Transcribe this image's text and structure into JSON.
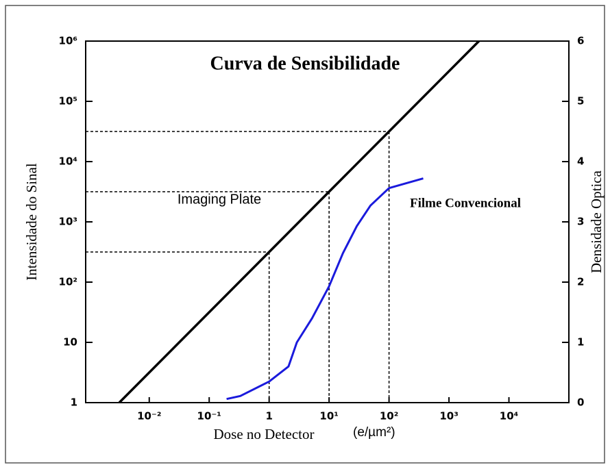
{
  "chart_data": {
    "type": "line",
    "title": "Curva de Sensibilidade",
    "xlabel": "Dose no Detector",
    "xunit": "(e/µm²)",
    "ylabel": "Intensidade do Sinal",
    "y2label": "Densidade Optica",
    "xscale": "log",
    "yscale": "log",
    "xlim": [
      0.00087,
      100000
    ],
    "ylim": [
      1,
      1000000
    ],
    "y2lim": [
      0,
      6
    ],
    "xticks": [
      {
        "value": 0.01,
        "label": "10⁻²"
      },
      {
        "value": 0.1,
        "label": "10⁻¹"
      },
      1,
      {
        "value": 10,
        "label": "10¹"
      },
      {
        "value": 100,
        "label": "10²"
      },
      {
        "value": 1000,
        "label": "10³"
      },
      {
        "value": 10000,
        "label": "10⁴"
      }
    ],
    "yticks": [
      1,
      10,
      {
        "value": 100,
        "label": "10²"
      },
      {
        "value": 1000,
        "label": "10³"
      },
      {
        "value": 10000,
        "label": "10⁴"
      },
      {
        "value": 100000,
        "label": "10⁵"
      },
      {
        "value": 1000000,
        "label": "10⁶"
      }
    ],
    "y2ticks": [
      0,
      1,
      2,
      3,
      4,
      5,
      6
    ],
    "series": [
      {
        "name": "Imaging Plate",
        "color": "#000000",
        "x": [
          0.00316,
          1,
          10,
          100,
          3162
        ],
        "values": [
          1,
          316,
          3162,
          31623,
          1000000
        ]
      },
      {
        "name": "Filme Convencional",
        "color": "#1a1adc",
        "axis": "y2",
        "x": [
          0.195,
          0.33,
          1,
          2.1,
          2.9,
          5.2,
          10,
          17,
          29,
          49,
          100,
          372
        ],
        "values": [
          0.06,
          0.11,
          0.35,
          0.6,
          1.0,
          1.4,
          1.93,
          2.48,
          2.93,
          3.27,
          3.56,
          3.72
        ]
      }
    ]
  }
}
